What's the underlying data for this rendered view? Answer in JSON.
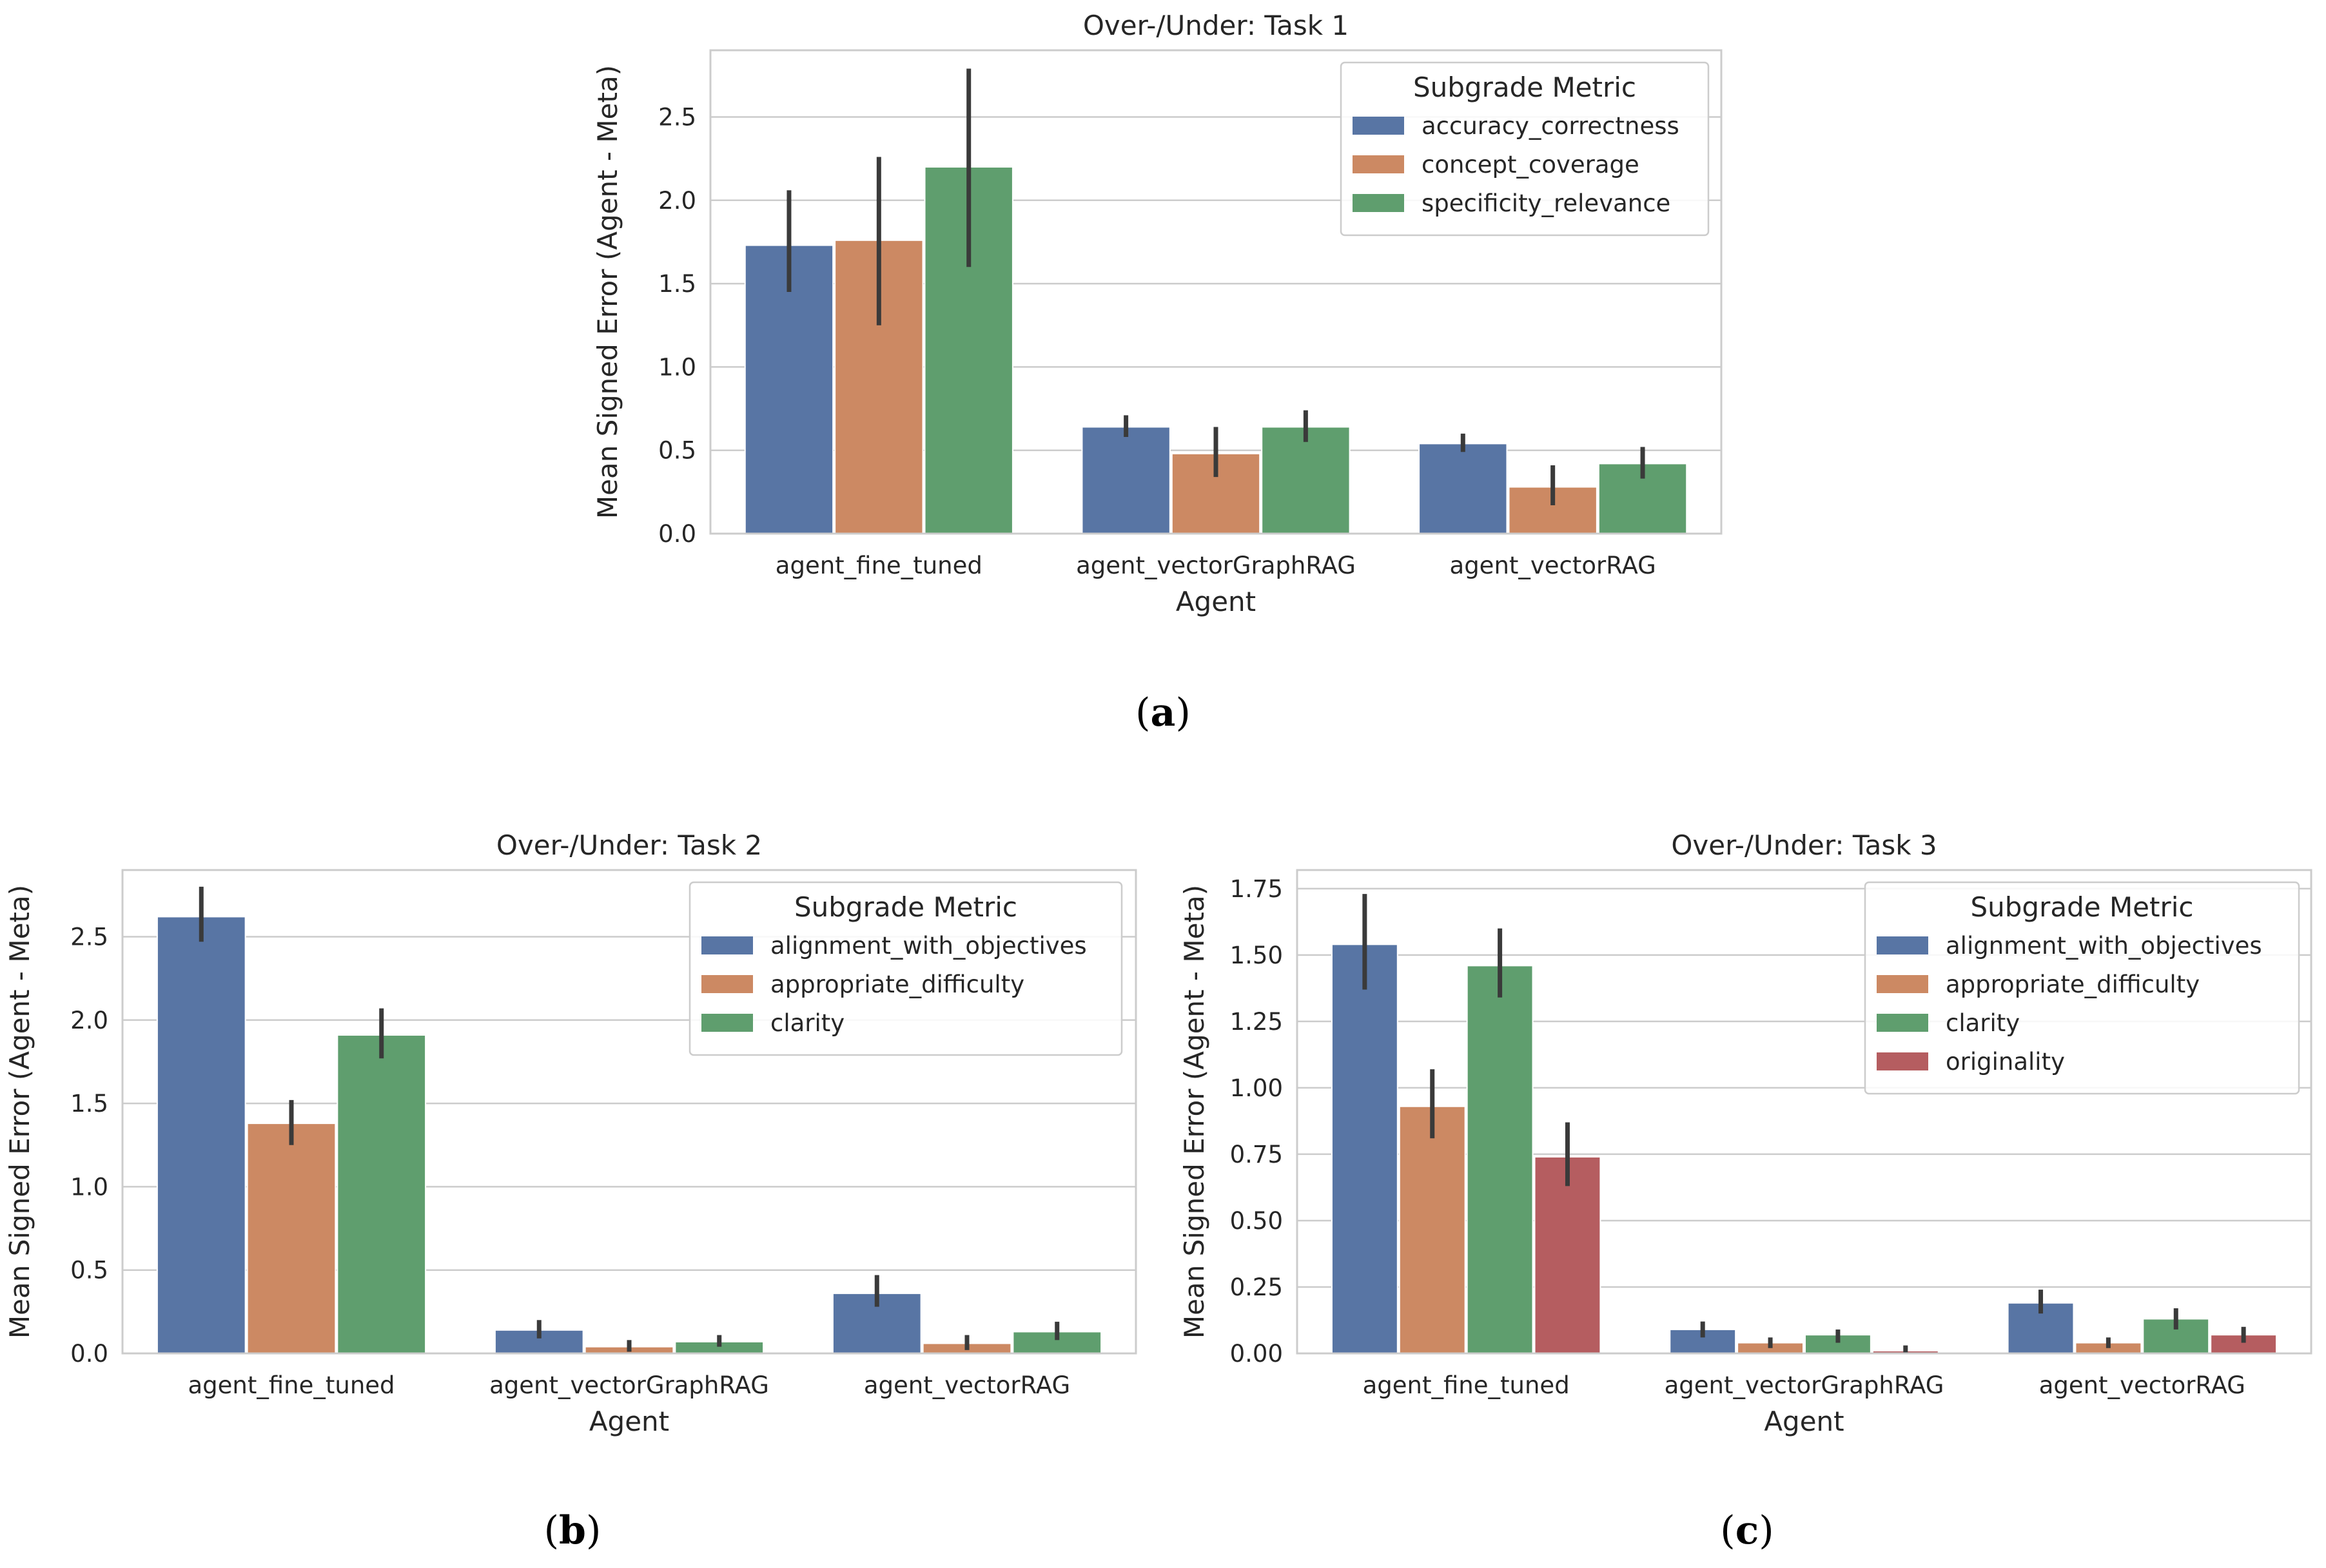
{
  "colors": {
    "blue": "#5875a4",
    "orange": "#cc8963",
    "green": "#5f9e6e",
    "red": "#b55d60",
    "grid": "#cccccc",
    "error_bar": "#3a3a3a",
    "baseline": "#aaaaaa"
  },
  "captions": [
    "a",
    "b",
    "c"
  ],
  "chart_data": [
    {
      "id": "task1",
      "type": "bar",
      "title": "Over-/Under: Task 1",
      "xlabel": "Agent",
      "ylabel": "Mean Signed Error (Agent - Meta)",
      "categories": [
        "agent_fine_tuned",
        "agent_vectorGraphRAG",
        "agent_vectorRAG"
      ],
      "ylim": [
        0,
        2.9
      ],
      "yticks": [
        0.0,
        0.5,
        1.0,
        1.5,
        2.0,
        2.5
      ],
      "ytick_labels": [
        "0.0",
        "0.5",
        "1.0",
        "1.5",
        "2.0",
        "2.5"
      ],
      "grid": true,
      "legend_title": "Subgrade Metric",
      "legend_position": "top-right",
      "series": [
        {
          "name": "accuracy_correctness",
          "color": "#5875a4",
          "values": [
            1.73,
            0.64,
            0.54
          ],
          "err_low": [
            1.45,
            0.58,
            0.49
          ],
          "err_high": [
            2.06,
            0.71,
            0.6
          ]
        },
        {
          "name": "concept_coverage",
          "color": "#cc8963",
          "values": [
            1.76,
            0.48,
            0.28
          ],
          "err_low": [
            1.25,
            0.34,
            0.17
          ],
          "err_high": [
            2.26,
            0.64,
            0.41
          ]
        },
        {
          "name": "specificity_relevance",
          "color": "#5f9e6e",
          "values": [
            2.2,
            0.64,
            0.42
          ],
          "err_low": [
            1.6,
            0.55,
            0.33
          ],
          "err_high": [
            2.79,
            0.74,
            0.52
          ]
        }
      ]
    },
    {
      "id": "task2",
      "type": "bar",
      "title": "Over-/Under: Task 2",
      "xlabel": "Agent",
      "ylabel": "Mean Signed Error (Agent - Meta)",
      "categories": [
        "agent_fine_tuned",
        "agent_vectorGraphRAG",
        "agent_vectorRAG"
      ],
      "ylim": [
        0,
        2.9
      ],
      "yticks": [
        0.0,
        0.5,
        1.0,
        1.5,
        2.0,
        2.5
      ],
      "ytick_labels": [
        "0.0",
        "0.5",
        "1.0",
        "1.5",
        "2.0",
        "2.5"
      ],
      "grid": true,
      "legend_title": "Subgrade Metric",
      "legend_position": "top-right",
      "series": [
        {
          "name": "alignment_with_objectives",
          "color": "#5875a4",
          "values": [
            2.62,
            0.14,
            0.36
          ],
          "err_low": [
            2.47,
            0.09,
            0.28
          ],
          "err_high": [
            2.8,
            0.2,
            0.47
          ]
        },
        {
          "name": "appropriate_difficulty",
          "color": "#cc8963",
          "values": [
            1.38,
            0.04,
            0.06
          ],
          "err_low": [
            1.25,
            0.01,
            0.02
          ],
          "err_high": [
            1.52,
            0.08,
            0.11
          ]
        },
        {
          "name": "clarity",
          "color": "#5f9e6e",
          "values": [
            1.91,
            0.07,
            0.13
          ],
          "err_low": [
            1.77,
            0.04,
            0.08
          ],
          "err_high": [
            2.07,
            0.11,
            0.19
          ]
        }
      ]
    },
    {
      "id": "task3",
      "type": "bar",
      "title": "Over-/Under: Task 3",
      "xlabel": "Agent",
      "ylabel": "Mean Signed Error (Agent - Meta)",
      "categories": [
        "agent_fine_tuned",
        "agent_vectorGraphRAG",
        "agent_vectorRAG"
      ],
      "ylim": [
        0,
        1.82
      ],
      "yticks": [
        0.0,
        0.25,
        0.5,
        0.75,
        1.0,
        1.25,
        1.5,
        1.75
      ],
      "ytick_labels": [
        "0.00",
        "0.25",
        "0.50",
        "0.75",
        "1.00",
        "1.25",
        "1.50",
        "1.75"
      ],
      "grid": true,
      "legend_title": "Subgrade Metric",
      "legend_position": "top-right",
      "series": [
        {
          "name": "alignment_with_objectives",
          "color": "#5875a4",
          "values": [
            1.54,
            0.09,
            0.19
          ],
          "err_low": [
            1.37,
            0.06,
            0.15
          ],
          "err_high": [
            1.73,
            0.12,
            0.24
          ]
        },
        {
          "name": "appropriate_difficulty",
          "color": "#cc8963",
          "values": [
            0.93,
            0.04,
            0.04
          ],
          "err_low": [
            0.81,
            0.02,
            0.02
          ],
          "err_high": [
            1.07,
            0.06,
            0.06
          ]
        },
        {
          "name": "clarity",
          "color": "#5f9e6e",
          "values": [
            1.46,
            0.07,
            0.13
          ],
          "err_low": [
            1.34,
            0.04,
            0.09
          ],
          "err_high": [
            1.6,
            0.09,
            0.17
          ]
        },
        {
          "name": "originality",
          "color": "#b55d60",
          "values": [
            0.74,
            0.01,
            0.07
          ],
          "err_low": [
            0.63,
            0.0,
            0.04
          ],
          "err_high": [
            0.87,
            0.03,
            0.1
          ]
        }
      ]
    }
  ]
}
